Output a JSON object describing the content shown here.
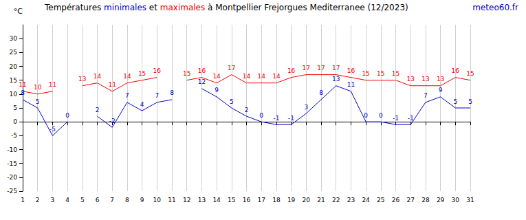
{
  "chart_data": {
    "type": "line",
    "title": "Températures minimales et maximales à Montpellier Frejorgues Mediterranee (12/2023)",
    "source": "meteo60.fr",
    "y_label": "°C",
    "categories": [
      "1",
      "2",
      "3",
      "4",
      "5",
      "6",
      "7",
      "8",
      "9",
      "10",
      "11",
      "12",
      "13",
      "14",
      "15",
      "16",
      "17",
      "18",
      "19",
      "20",
      "21",
      "22",
      "23",
      "24",
      "25",
      "26",
      "27",
      "28",
      "29",
      "30",
      "31"
    ],
    "series": [
      {
        "name": "minimales",
        "color": "#0000cc",
        "values": [
          8,
          5,
          -5,
          0,
          null,
          2,
          -2,
          7,
          4,
          7,
          8,
          null,
          12,
          9,
          5,
          2,
          0,
          -1,
          -1,
          3,
          8,
          13,
          11,
          0,
          0,
          -1,
          -1,
          7,
          9,
          5,
          5
        ]
      },
      {
        "name": "maximales",
        "color": "#ee0000",
        "values": [
          11,
          10,
          11,
          null,
          13,
          14,
          11,
          14,
          15,
          16,
          null,
          15,
          16,
          14,
          17,
          14,
          14,
          14,
          16,
          17,
          17,
          17,
          16,
          15,
          15,
          15,
          13,
          13,
          13,
          16,
          15
        ]
      }
    ],
    "ylim": [
      -25,
      35
    ],
    "yticks": [
      -25,
      -20,
      -15,
      -10,
      -5,
      0,
      5,
      10,
      15,
      20,
      25,
      30
    ],
    "grid": true,
    "data_labels": true
  }
}
